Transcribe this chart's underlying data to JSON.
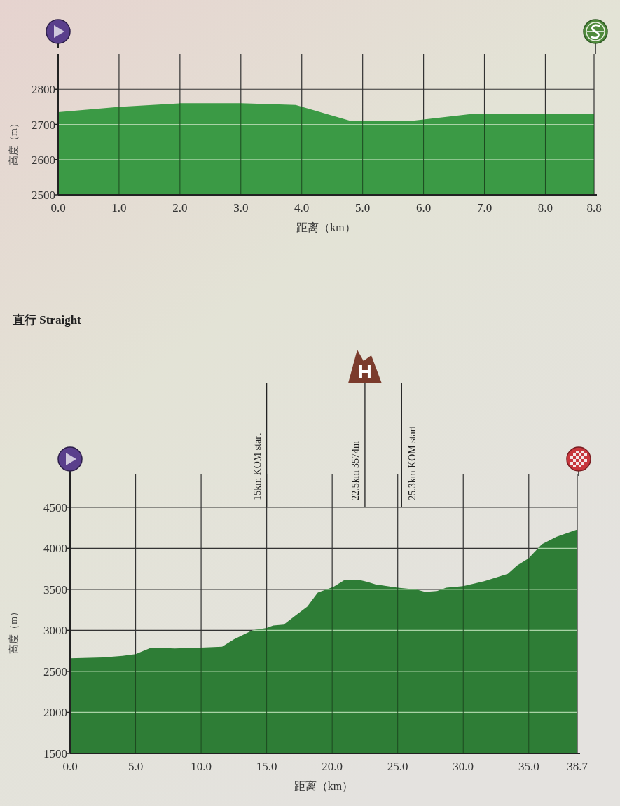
{
  "chart_data": [
    {
      "type": "area",
      "xlabel": "距离（km）",
      "ylabel": "高度（m）",
      "color": "#3b9a45",
      "grid": true,
      "x": [
        0,
        1,
        2,
        3,
        3.9,
        4.8,
        5.8,
        6.8,
        8,
        8.8
      ],
      "values": [
        2735,
        2750,
        2760,
        2760,
        2755,
        2710,
        2710,
        2730,
        2730,
        2730
      ],
      "xlim": [
        0,
        8.8
      ],
      "ylim": [
        2500,
        2900
      ],
      "xticks": [
        {
          "value": 0,
          "label": "0.0"
        },
        {
          "value": 1,
          "label": "1.0"
        },
        {
          "value": 2,
          "label": "2.0"
        },
        {
          "value": 3,
          "label": "3.0"
        },
        {
          "value": 4,
          "label": "4.0"
        },
        {
          "value": 5,
          "label": "5.0"
        },
        {
          "value": 6,
          "label": "6.0"
        },
        {
          "value": 7,
          "label": "7.0"
        },
        {
          "value": 8,
          "label": "8.0"
        },
        {
          "value": 8.8,
          "label": "8.8"
        }
      ],
      "yticks": [
        2500,
        2600,
        2700,
        2800
      ]
    },
    {
      "type": "area",
      "title": "直行 Straight",
      "xlabel": "距离（km）",
      "ylabel": "高度（m）",
      "color": "#2e7d36",
      "grid": true,
      "x": [
        0,
        2.5,
        4,
        5,
        6.2,
        8,
        10,
        11.6,
        12.5,
        13.9,
        15,
        15.5,
        16.3,
        17.2,
        18.1,
        18.9,
        20.1,
        20.9,
        22.2,
        22.7,
        23.3,
        25,
        26.4,
        27.1,
        28,
        28.7,
        30,
        31.6,
        33.4,
        34.1,
        35,
        36,
        37.1,
        38.7
      ],
      "values": [
        2660,
        2670,
        2690,
        2710,
        2790,
        2780,
        2790,
        2800,
        2890,
        3000,
        3030,
        3060,
        3070,
        3180,
        3290,
        3460,
        3530,
        3610,
        3610,
        3590,
        3560,
        3520,
        3500,
        3470,
        3480,
        3520,
        3540,
        3600,
        3690,
        3790,
        3880,
        4050,
        4140,
        4230
      ],
      "xlim": [
        0,
        38.7
      ],
      "ylim": [
        1500,
        4900
      ],
      "xticks": [
        {
          "value": 0,
          "label": "0.0"
        },
        {
          "value": 5,
          "label": "5.0"
        },
        {
          "value": 10,
          "label": "10.0"
        },
        {
          "value": 15,
          "label": "15.0"
        },
        {
          "value": 20,
          "label": "20.0"
        },
        {
          "value": 25,
          "label": "25.0"
        },
        {
          "value": 30,
          "label": "30.0"
        },
        {
          "value": 35,
          "label": "35.0"
        },
        {
          "value": 38.7,
          "label": "38.7"
        }
      ],
      "yticks": [
        1500,
        2000,
        2500,
        3000,
        3500,
        4000,
        4500
      ],
      "ref_lines": [
        {
          "axis": "x",
          "value": 15,
          "label": "15km KOM start"
        },
        {
          "axis": "x",
          "value": 22.5,
          "label": "22.5km 3574m"
        },
        {
          "axis": "x",
          "value": 25.3,
          "label": "25.3km KOM start"
        }
      ]
    }
  ]
}
